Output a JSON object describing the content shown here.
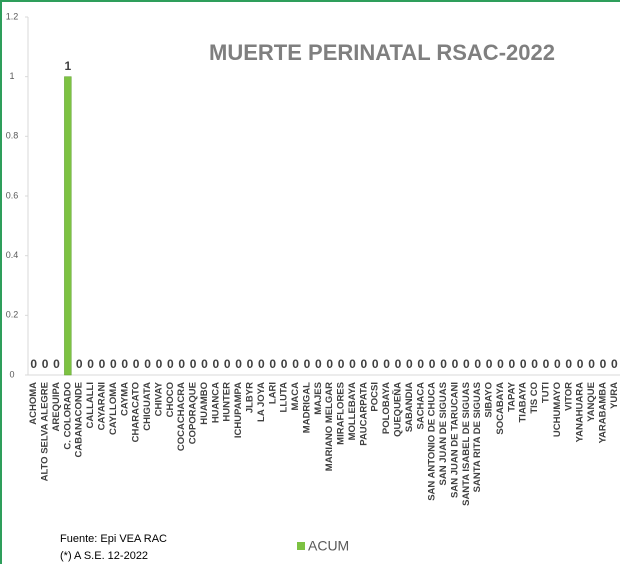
{
  "chart_data": {
    "type": "bar",
    "title": "MUERTE PERINATAL RSAC-2022",
    "categories": [
      "ACHOMA",
      "ALTO SELVA ALEGRE",
      "AREQUIPA",
      "C. COLORADO",
      "CABANACONDE",
      "CALLALLI",
      "CAYARANI",
      "CAYLLOMA",
      "CAYMA",
      "CHARACATO",
      "CHIGUATA",
      "CHIVAY",
      "CHOCO",
      "COCACHACRA",
      "COPORAQUE",
      "HUAMBO",
      "HUANCA",
      "HUNTER",
      "ICHUPAMPA",
      "JLBYR",
      "LA JOYA",
      "LARI",
      "LLUTA",
      "MACA",
      "MADRIGAL",
      "MAJES",
      "MARIANO MELGAR",
      "MIRAFLORES",
      "MOLLEBAYA",
      "PAUCARPATA",
      "POCSI",
      "POLOBAYA",
      "QUEQUEÑA",
      "SABANDIA",
      "SACHACA",
      "SAN ANTONIO DE CHUCA",
      "SAN JUAN DE SIGUAS",
      "SAN JUAN DE TARUCANI",
      "SANTA ISABEL DE SIGUAS",
      "SANTA RITA DE SIGUAS",
      "SIBAYO",
      "SOCABAYA",
      "TAPAY",
      "TIABAYA",
      "TIS CO",
      "TUTI",
      "UCHUMAYO",
      "VITOR",
      "YANAHUARA",
      "YANQUE",
      "YARABAMBA",
      "YURA"
    ],
    "series": [
      {
        "name": "ACUM",
        "color": "#7dc242",
        "values": [
          0,
          0,
          0,
          1,
          0,
          0,
          0,
          0,
          0,
          0,
          0,
          0,
          0,
          0,
          0,
          0,
          0,
          0,
          0,
          0,
          0,
          0,
          0,
          0,
          0,
          0,
          0,
          0,
          0,
          0,
          0,
          0,
          0,
          0,
          0,
          0,
          0,
          0,
          0,
          0,
          0,
          0,
          0,
          0,
          0,
          0,
          0,
          0,
          0,
          0,
          0,
          0
        ]
      }
    ],
    "ylim": [
      0,
      1.2
    ],
    "yticks": [
      0,
      0.2,
      0.4,
      0.6,
      0.8,
      1,
      1.2
    ],
    "grid": false,
    "source": "Fuente: Epi VEA RAC",
    "note": "(*) A S.E. 12-2022"
  }
}
